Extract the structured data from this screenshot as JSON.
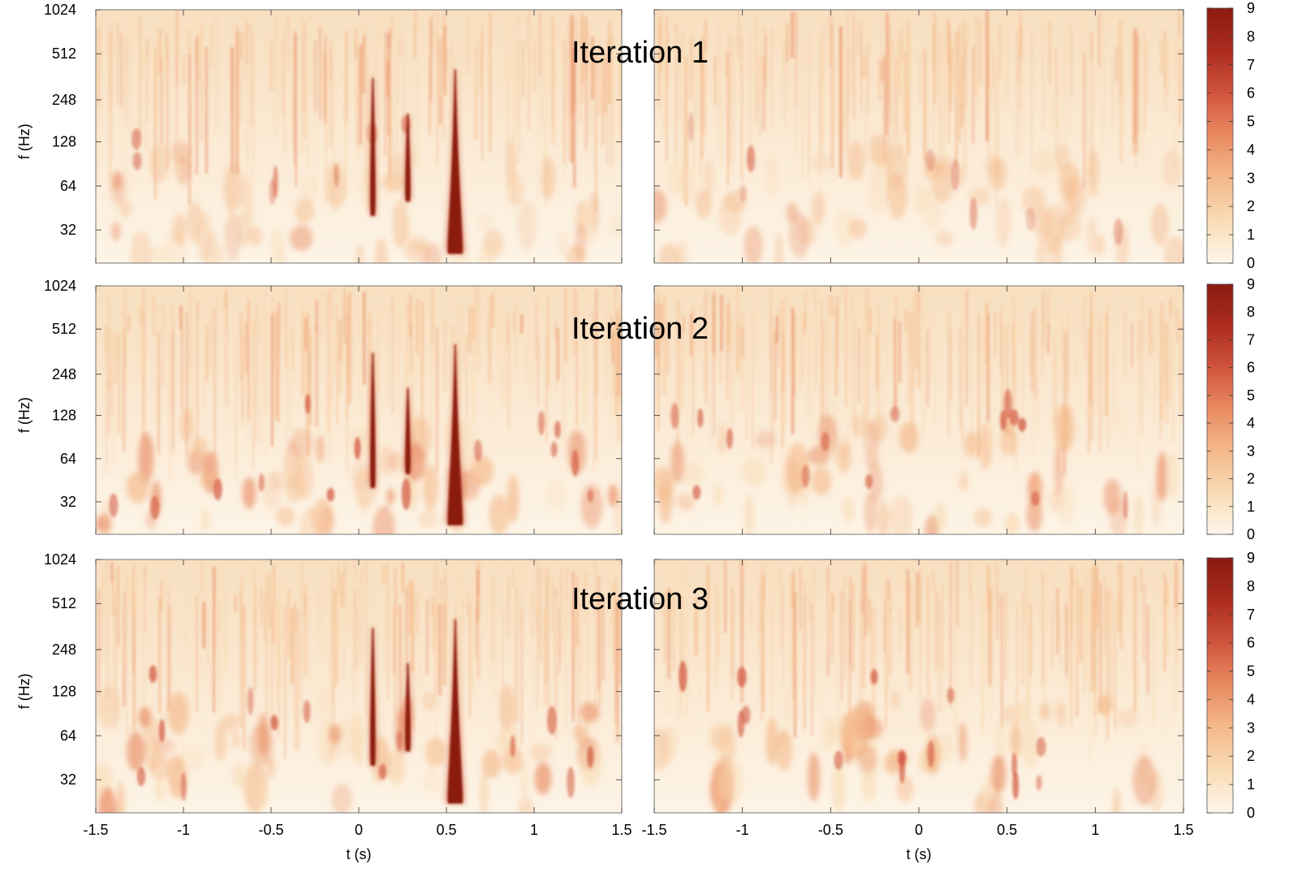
{
  "chart_data": {
    "type": "heatmap",
    "rows": [
      {
        "annotation": "Iteration 1",
        "residual_spots": "faint"
      },
      {
        "annotation": "Iteration 2",
        "residual_spots": "medium"
      },
      {
        "annotation": "Iteration 3",
        "residual_spots": "medium"
      }
    ],
    "columns": [
      {
        "signal_chirps": [
          {
            "t": 0.08,
            "f_low": 40,
            "f_high": 350
          },
          {
            "t": 0.28,
            "f_low": 50,
            "f_high": 200
          },
          {
            "t": 0.55,
            "f_low": 22,
            "f_high": 400
          }
        ]
      },
      {
        "signal_chirps": []
      }
    ],
    "x_axis": {
      "label": "t (s)",
      "range": [
        -1.5,
        1.5
      ],
      "ticks": [
        -1.5,
        -1,
        -0.5,
        0,
        0.5,
        1,
        1.5
      ],
      "tick_labels": [
        "-1.5",
        "-1",
        "-0.5",
        "0",
        "0.5",
        "1",
        "1.5"
      ]
    },
    "y_axis": {
      "label": "f (Hz)",
      "scale": "log2",
      "range": [
        19,
        1024
      ],
      "ticks": [
        32,
        64,
        128,
        248,
        512,
        1024
      ],
      "tick_labels": [
        "32",
        "64",
        "128",
        "248",
        "512",
        "1024"
      ]
    },
    "colorbar": {
      "range": [
        0,
        9
      ],
      "ticks": [
        0,
        1,
        2,
        3,
        4,
        5,
        6,
        7,
        8,
        9
      ],
      "tick_labels": [
        "0",
        "1",
        "2",
        "3",
        "4",
        "5",
        "6",
        "7",
        "8",
        "9"
      ],
      "colors": [
        "#fdf6ea",
        "#f9dcb6",
        "#f4b98a",
        "#e98b62",
        "#d1553d",
        "#ab2c1f",
        "#8b1a10"
      ]
    }
  }
}
